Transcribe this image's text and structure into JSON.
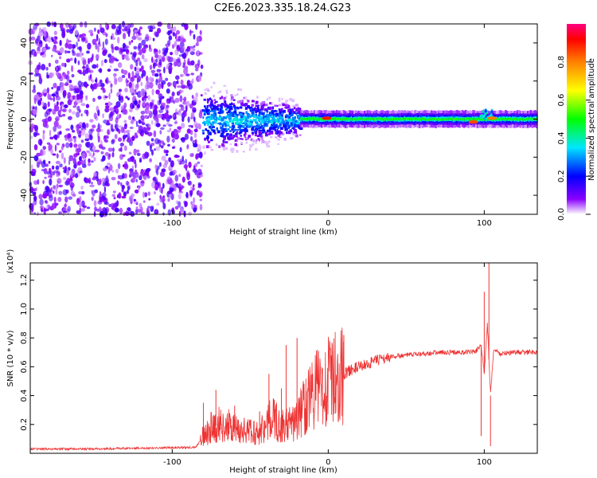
{
  "title": "C2E6.2023.335.18.24.G23",
  "chart_data": [
    {
      "type": "heatmap",
      "xlabel": "Height of straight line (km)",
      "ylabel": "Frequency (Hz)",
      "xlim": [
        -191,
        134
      ],
      "ylim": [
        -50,
        50
      ],
      "x_ticks": [
        -100,
        0,
        100
      ],
      "y_ticks": [
        -40,
        -20,
        0,
        20,
        40
      ],
      "colorbar": {
        "label": "Normalized spectral amplitude",
        "range": [
          0.0,
          1.0
        ],
        "ticks": [
          "0.0",
          "0.2",
          "0.4",
          "0.6",
          "0.8"
        ],
        "colors": [
          "#ffffff",
          "#8a00ff",
          "#0000ff",
          "#00e6ff",
          "#00ff00",
          "#ffff00",
          "#ff8000",
          "#ff0000",
          "#ff0080"
        ]
      },
      "regions": [
        {
          "x_range": [
            -191,
            -81
          ],
          "description_level": "noise",
          "amplitude": 0.08
        },
        {
          "x_range": [
            -81,
            -18
          ],
          "center_freq": 0,
          "spread_hz": 10,
          "amplitude": 0.35
        },
        {
          "x_range": [
            -18,
            134
          ],
          "center_freq": 0,
          "spread_hz": 3,
          "amplitude": 0.5
        },
        {
          "x_range": [
            97,
            105
          ],
          "center_freq": 3,
          "spread_hz": 5,
          "amplitude": 0.45
        }
      ],
      "peaks": [
        {
          "x": -1,
          "y": 0.5,
          "amplitude": 0.9
        },
        {
          "x": 93,
          "y": -1.5,
          "amplitude": 0.85
        },
        {
          "x": 105,
          "y": 0.5,
          "amplitude": 0.8
        }
      ]
    },
    {
      "type": "line",
      "xlabel": "Height of straight line (km)",
      "ylabel": "SNR (10 * v/v)",
      "y_multiplier": "(x10⁴)",
      "xlim": [
        -191,
        134
      ],
      "ylim": [
        0.0,
        1.32
      ],
      "x_ticks": [
        -100,
        0,
        100
      ],
      "y_ticks": [
        "0.2",
        "0.4",
        "0.6",
        "0.8",
        "1.0",
        "1.2"
      ],
      "series_color": "#ee3333",
      "x": [
        -191,
        -150,
        -100,
        -85,
        -80,
        -75,
        -70,
        -65,
        -60,
        -55,
        -50,
        -45,
        -40,
        -35,
        -30,
        -25,
        -20,
        -15,
        -10,
        -5,
        0,
        5,
        10,
        15,
        20,
        30,
        40,
        50,
        60,
        70,
        80,
        90,
        95,
        98,
        100,
        102,
        104,
        106,
        110,
        120,
        134
      ],
      "y": [
        0.03,
        0.03,
        0.04,
        0.04,
        0.12,
        0.18,
        0.2,
        0.19,
        0.17,
        0.16,
        0.15,
        0.14,
        0.2,
        0.25,
        0.18,
        0.2,
        0.22,
        0.35,
        0.42,
        0.46,
        0.5,
        0.52,
        0.55,
        0.58,
        0.6,
        0.64,
        0.67,
        0.68,
        0.69,
        0.7,
        0.7,
        0.7,
        0.71,
        0.75,
        0.55,
        0.9,
        0.4,
        0.72,
        0.69,
        0.7,
        0.7
      ],
      "spikes": [
        {
          "x": -80,
          "y": 0.35
        },
        {
          "x": -72,
          "y": 0.44
        },
        {
          "x": -60,
          "y": 0.33
        },
        {
          "x": -44,
          "y": 0.29
        },
        {
          "x": -38,
          "y": 0.55
        },
        {
          "x": -30,
          "y": 0.45
        },
        {
          "x": -27,
          "y": 0.75
        },
        {
          "x": -20,
          "y": 0.8
        },
        {
          "x": -14,
          "y": 0.43
        },
        {
          "x": 10,
          "y": 0.82
        },
        {
          "x": 100,
          "y": 1.12
        },
        {
          "x": 103,
          "y": 1.32
        },
        {
          "x": 104,
          "y": 0.05
        },
        {
          "x": 98,
          "y": 0.12
        }
      ]
    }
  ]
}
